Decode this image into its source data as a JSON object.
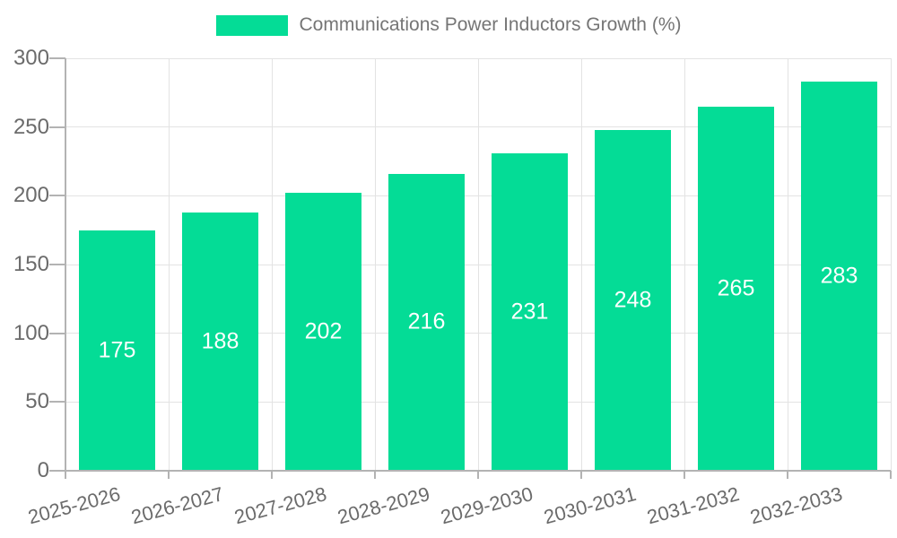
{
  "legend": {
    "position": "top-center",
    "items": [
      {
        "label": "Communications Power Inductors Growth (%)",
        "swatch_color": "#04dc96"
      }
    ]
  },
  "chart_data": {
    "type": "bar",
    "title": "Communications Power Inductors Growth (%)",
    "categories": [
      "2025-2026",
      "2026-2027",
      "2027-2028",
      "2028-2029",
      "2029-2030",
      "2030-2031",
      "2031-2032",
      "2032-2033"
    ],
    "values": [
      175,
      188,
      202,
      216,
      231,
      248,
      265,
      283
    ],
    "xlabel": "",
    "ylabel": "",
    "ylim": [
      0,
      300
    ],
    "ytick_step": 50,
    "yticks": [
      0,
      50,
      100,
      150,
      200,
      250,
      300
    ],
    "grid": true,
    "value_labels": "centered-inside-bars",
    "xtick_label_rotation_deg": -15,
    "legend_position": "top",
    "colors": {
      "bar": "#04dc96",
      "value_label": "#ffffff",
      "grid": "#e3e3e3",
      "axis": "#b3b3b3",
      "tick_text": "#6b6b6b",
      "legend_text": "#757575",
      "background": "#ffffff"
    }
  }
}
